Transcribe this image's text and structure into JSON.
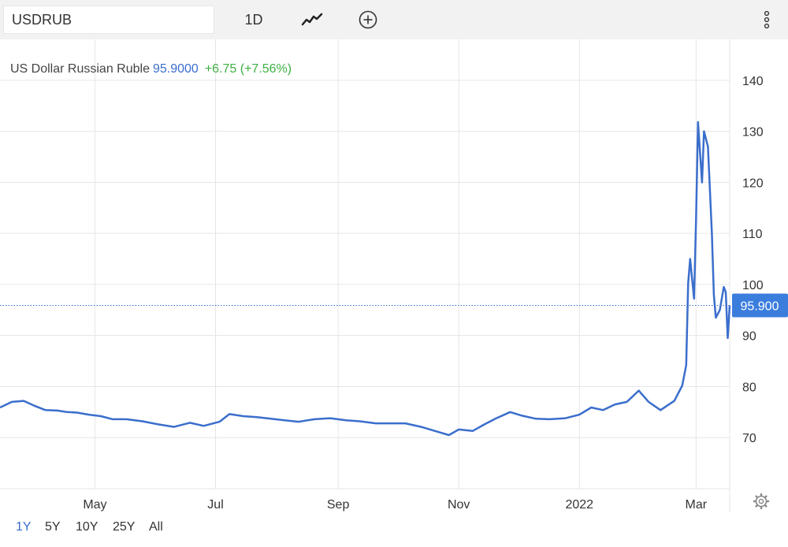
{
  "toolbar": {
    "symbol": "USDRUB",
    "interval": "1D"
  },
  "icons": {
    "chart_type": "line-chart-icon",
    "add": "plus-circle-icon",
    "more": "vertical-dots-icon",
    "settings": "gear-icon"
  },
  "legend": {
    "name": "US Dollar Russian Ruble",
    "price": "95.9000",
    "change": "+6.75 (+7.56%)"
  },
  "ranges": [
    {
      "label": "1Y",
      "active": true
    },
    {
      "label": "5Y",
      "active": false
    },
    {
      "label": "10Y",
      "active": false
    },
    {
      "label": "25Y",
      "active": false
    },
    {
      "label": "All",
      "active": false
    }
  ],
  "colors": {
    "line": "#3b6ecc",
    "grid": "#e6e6e6",
    "positive": "#3cb043",
    "price_tag_bg": "#3b7ddd"
  },
  "chart_data": {
    "type": "line",
    "title": "",
    "xlabel": "",
    "ylabel": "",
    "y_ticks": [
      70,
      80,
      90,
      100,
      110,
      120,
      130,
      140
    ],
    "ylim": [
      60,
      148
    ],
    "xlim": [
      "2021-03-14",
      "2022-03-18"
    ],
    "x_ticks": [
      {
        "label": "May",
        "date": "2021-05-01"
      },
      {
        "label": "Jul",
        "date": "2021-07-01"
      },
      {
        "label": "Sep",
        "date": "2021-09-01"
      },
      {
        "label": "Nov",
        "date": "2021-11-01"
      },
      {
        "label": "2022",
        "date": "2022-01-01"
      },
      {
        "label": "Mar",
        "date": "2022-03-01"
      }
    ],
    "grid": true,
    "last_price_label": "95.900",
    "last_price": 95.9,
    "series": [
      {
        "x": [
          "2021-03-14",
          "2021-03-20",
          "2021-03-26",
          "2021-03-31",
          "2021-04-06",
          "2021-04-12",
          "2021-04-17",
          "2021-04-22",
          "2021-04-28",
          "2021-05-04",
          "2021-05-10",
          "2021-05-17",
          "2021-05-25",
          "2021-06-02",
          "2021-06-10",
          "2021-06-18",
          "2021-06-25",
          "2021-07-03",
          "2021-07-08",
          "2021-07-15",
          "2021-07-22",
          "2021-07-29",
          "2021-08-05",
          "2021-08-12",
          "2021-08-20",
          "2021-08-28",
          "2021-09-05",
          "2021-09-12",
          "2021-09-20",
          "2021-09-28",
          "2021-10-05",
          "2021-10-13",
          "2021-10-20",
          "2021-10-27",
          "2021-11-01",
          "2021-11-08",
          "2021-11-14",
          "2021-11-20",
          "2021-11-27",
          "2021-12-03",
          "2021-12-10",
          "2021-12-17",
          "2021-12-25",
          "2022-01-01",
          "2022-01-07",
          "2022-01-13",
          "2022-01-19",
          "2022-01-25",
          "2022-01-31",
          "2022-02-05",
          "2022-02-11",
          "2022-02-18",
          "2022-02-22",
          "2022-02-24",
          "2022-02-25",
          "2022-02-26",
          "2022-02-28",
          "2022-03-01",
          "2022-03-02",
          "2022-03-04",
          "2022-03-05",
          "2022-03-07",
          "2022-03-09",
          "2022-03-10",
          "2022-03-11",
          "2022-03-13",
          "2022-03-15",
          "2022-03-16",
          "2022-03-17",
          "2022-03-18"
        ],
        "y": [
          75.9,
          77.0,
          77.2,
          76.3,
          75.4,
          75.3,
          75.0,
          74.9,
          74.5,
          74.2,
          73.6,
          73.6,
          73.2,
          72.6,
          72.1,
          72.9,
          72.3,
          73.1,
          74.6,
          74.2,
          74.0,
          73.7,
          73.4,
          73.1,
          73.6,
          73.8,
          73.4,
          73.2,
          72.8,
          72.8,
          72.8,
          72.1,
          71.3,
          70.5,
          71.6,
          71.3,
          72.6,
          73.8,
          75.0,
          74.3,
          73.7,
          73.6,
          73.8,
          74.5,
          75.9,
          75.4,
          76.5,
          77.0,
          79.2,
          77.0,
          75.4,
          77.2,
          80.2,
          84.2,
          100.2,
          105.0,
          97.2,
          112.5,
          131.8,
          120.0,
          130.0,
          127.0,
          110.0,
          98.0,
          93.5,
          95.0,
          99.5,
          98.5,
          89.5,
          95.9
        ]
      }
    ]
  }
}
